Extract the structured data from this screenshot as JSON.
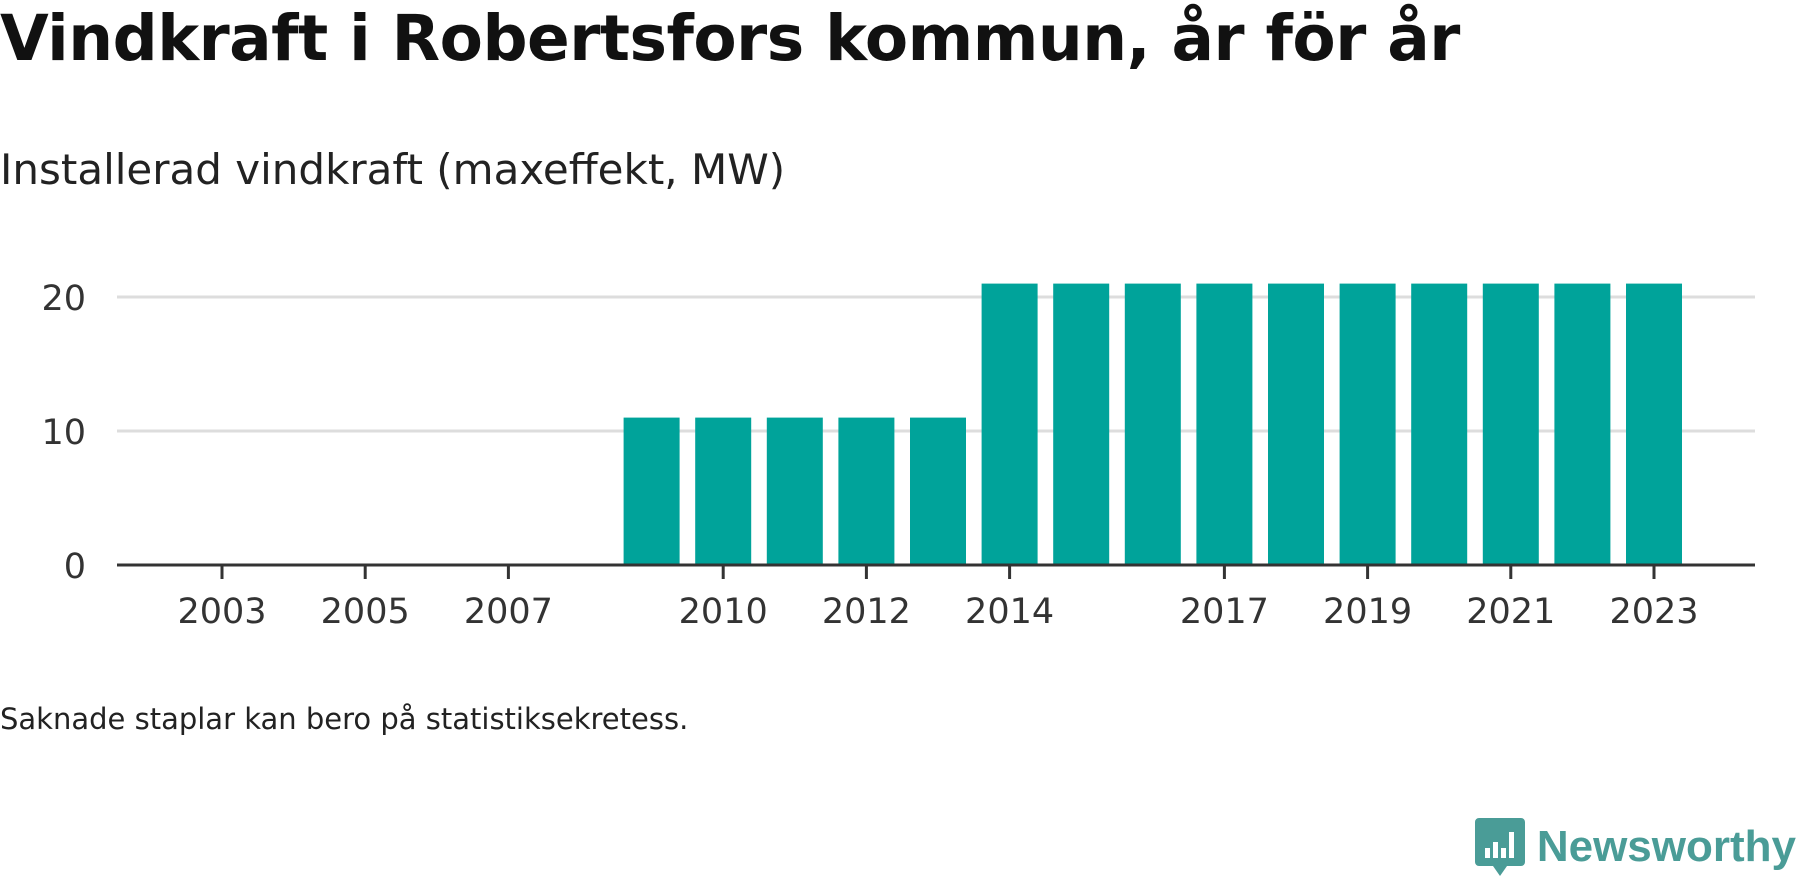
{
  "title": "Vindkraft i Robertsfors kommun, år för år",
  "subtitle": "Installerad vindkraft (maxeffekt, MW)",
  "footnote": "Saknade staplar kan bero på statistiksekretess.",
  "brand": {
    "name": "Newsworthy",
    "icon": "newsworthy-logo-icon",
    "color": "#4a9c97"
  },
  "colors": {
    "bar": "#00a39a",
    "grid": "#dddddd",
    "axis": "#333333",
    "tick_text": "#333333"
  },
  "chart_data": {
    "type": "bar",
    "categories": [
      "2003",
      "2004",
      "2005",
      "2006",
      "2007",
      "2008",
      "2009",
      "2010",
      "2011",
      "2012",
      "2013",
      "2014",
      "2015",
      "2016",
      "2017",
      "2018",
      "2019",
      "2020",
      "2021",
      "2022",
      "2023"
    ],
    "values": [
      0,
      0,
      0,
      0,
      0,
      0,
      11,
      11,
      11,
      11,
      11,
      21,
      21,
      21,
      21,
      21,
      21,
      21,
      21,
      21,
      21
    ],
    "x_tick_labels": [
      "2003",
      "2005",
      "2007",
      "2010",
      "2012",
      "2014",
      "2017",
      "2019",
      "2021",
      "2023"
    ],
    "y_ticks": [
      0,
      10,
      20
    ],
    "ylim": [
      0,
      21
    ],
    "grid": true,
    "title": "Vindkraft i Robertsfors kommun, år för år",
    "subtitle": "Installerad vindkraft (maxeffekt, MW)",
    "xlabel": "",
    "ylabel": ""
  }
}
